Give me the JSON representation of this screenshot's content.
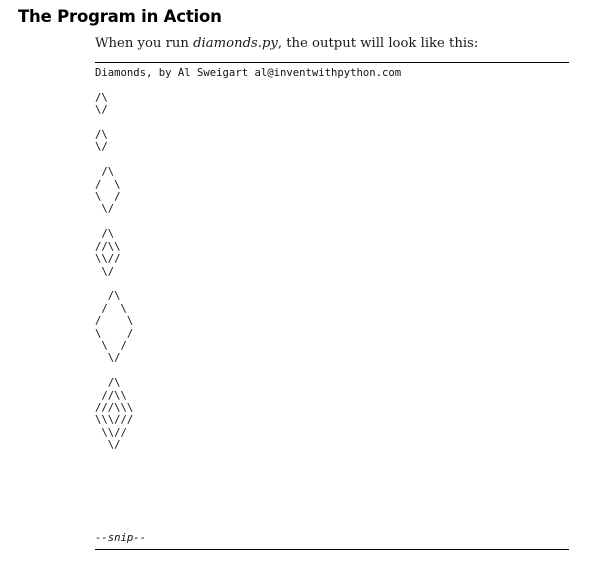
{
  "section": {
    "title": "The Program in Action"
  },
  "intro": {
    "before": "When you run ",
    "filename": "diamonds.py",
    "after": ", the output will look like this:"
  },
  "output": {
    "text": "Diamonds, by Al Sweigart al@inventwithpython.com\n\n/\\\n\\/\n\n/\\\n\\/\n\n /\\\n/  \\\n\\  /\n \\/\n\n /\\\n//\\\\\n\\\\//\n \\/\n\n  /\\\n /  \\\n/    \\\n\\    /\n \\  /\n  \\/\n\n  /\\\n //\\\\\n///\\\\\\\n\\\\\\///\n \\\\//\n  \\/",
    "snip": "--snip--"
  }
}
